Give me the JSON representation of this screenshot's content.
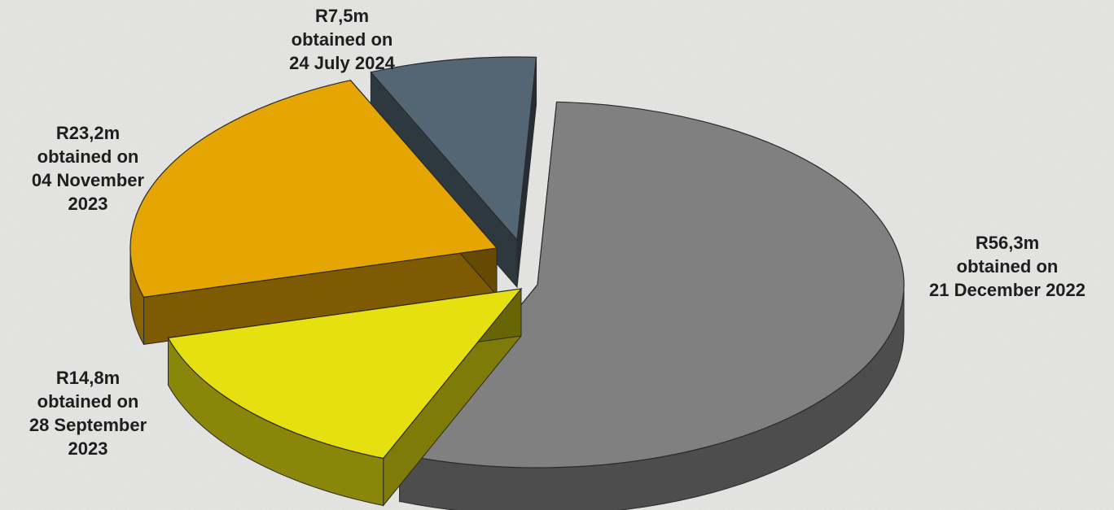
{
  "chart_data": {
    "type": "pie",
    "style": "3d-exploded",
    "slices": [
      {
        "label": "R56,3m\nobtained on\n21 December 2022",
        "value": 56.3,
        "unit": "R million",
        "color": "#808080"
      },
      {
        "label": "R14,8m\nobtained on\n28 September\n2023",
        "value": 14.8,
        "unit": "R million",
        "color": "#e6e010"
      },
      {
        "label": "R23,2m\nobtained on\n04 November\n2023",
        "value": 23.2,
        "unit": "R million",
        "color": "#e5a503"
      },
      {
        "label": "R7,5m\nobtained on\n24 July 2024",
        "value": 7.5,
        "unit": "R million",
        "color": "#546673"
      }
    ]
  }
}
